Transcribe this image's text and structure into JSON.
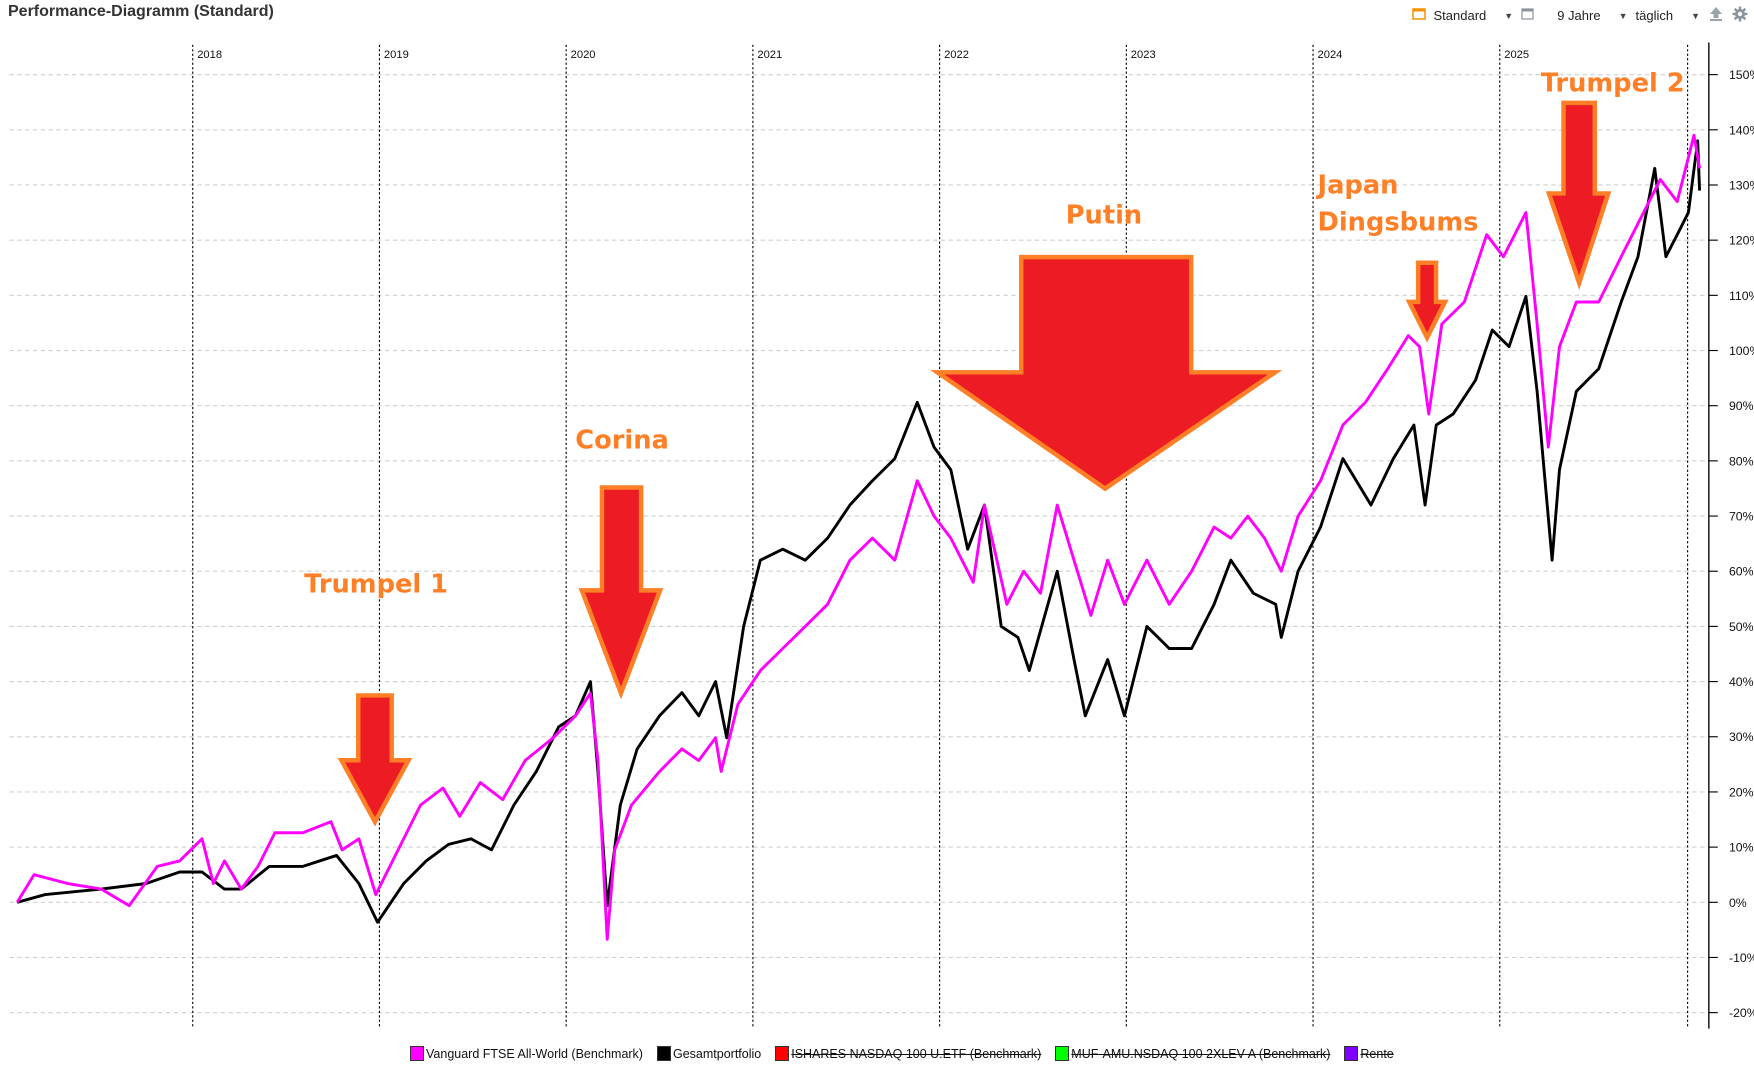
{
  "header": {
    "title": "Performance-Diagramm (Standard)"
  },
  "toolbar": {
    "view_label": "Standard",
    "period_label": "9 Jahre",
    "interval_label": "täglich",
    "icons": [
      "layout-icon",
      "window-icon",
      "export-icon",
      "gear-icon"
    ],
    "accent": "#f39200"
  },
  "chart_data": {
    "type": "line",
    "title": "Performance-Diagramm (Standard)",
    "xlabel": "",
    "ylabel": "",
    "xlim": [
      2017.06,
      2026.1
    ],
    "ylim": [
      -20,
      150
    ],
    "x_ticks": [
      {
        "v": 2018,
        "label": "2018"
      },
      {
        "v": 2019,
        "label": "2019"
      },
      {
        "v": 2020,
        "label": "2020"
      },
      {
        "v": 2021,
        "label": "2021"
      },
      {
        "v": 2022,
        "label": "2022"
      },
      {
        "v": 2023,
        "label": "2023"
      },
      {
        "v": 2024,
        "label": "2024"
      },
      {
        "v": 2025,
        "label": "2025"
      }
    ],
    "y_ticks": [
      -20,
      -10,
      0,
      10,
      20,
      30,
      40,
      50,
      60,
      70,
      80,
      90,
      100,
      110,
      120,
      130,
      140,
      150
    ],
    "y_tick_suffix": "%",
    "grid": true,
    "legend_position": "bottom",
    "series": [
      {
        "name": "Vanguard FTSE All-World  (Benchmark)",
        "color": "#ff00ff",
        "hidden": false,
        "points": [
          [
            2017.06,
            0
          ],
          [
            2017.15,
            5
          ],
          [
            2017.33,
            3.4
          ],
          [
            2017.51,
            2.4
          ],
          [
            2017.66,
            -0.6
          ],
          [
            2017.81,
            6.5
          ],
          [
            2017.93,
            7.5
          ],
          [
            2018.05,
            11.5
          ],
          [
            2018.11,
            3.4
          ],
          [
            2018.17,
            7.5
          ],
          [
            2018.26,
            2.4
          ],
          [
            2018.35,
            6.5
          ],
          [
            2018.44,
            12.6
          ],
          [
            2018.59,
            12.6
          ],
          [
            2018.74,
            14.6
          ],
          [
            2018.8,
            9.5
          ],
          [
            2018.89,
            11.5
          ],
          [
            2018.98,
            1.4
          ],
          [
            2019.1,
            9.5
          ],
          [
            2019.22,
            17.6
          ],
          [
            2019.34,
            20.7
          ],
          [
            2019.43,
            15.6
          ],
          [
            2019.54,
            21.7
          ],
          [
            2019.66,
            18.6
          ],
          [
            2019.78,
            25.7
          ],
          [
            2019.93,
            29.8
          ],
          [
            2020.05,
            33.8
          ],
          [
            2020.13,
            37.9
          ],
          [
            2020.17,
            25.7
          ],
          [
            2020.22,
            -6.7
          ],
          [
            2020.26,
            9.5
          ],
          [
            2020.35,
            17.6
          ],
          [
            2020.5,
            23.7
          ],
          [
            2020.62,
            27.8
          ],
          [
            2020.71,
            25.7
          ],
          [
            2020.8,
            29.8
          ],
          [
            2020.83,
            23.7
          ],
          [
            2020.92,
            35.9
          ],
          [
            2021.04,
            42
          ],
          [
            2021.16,
            46
          ],
          [
            2021.28,
            50
          ],
          [
            2021.4,
            54
          ],
          [
            2021.52,
            62
          ],
          [
            2021.64,
            66
          ],
          [
            2021.76,
            62
          ],
          [
            2021.88,
            76.4
          ],
          [
            2021.97,
            70
          ],
          [
            2022.06,
            66
          ],
          [
            2022.18,
            58
          ],
          [
            2022.24,
            72
          ],
          [
            2022.36,
            54
          ],
          [
            2022.45,
            60
          ],
          [
            2022.54,
            56
          ],
          [
            2022.63,
            72
          ],
          [
            2022.72,
            62
          ],
          [
            2022.81,
            52
          ],
          [
            2022.9,
            62
          ],
          [
            2022.99,
            54
          ],
          [
            2023.11,
            62
          ],
          [
            2023.23,
            54
          ],
          [
            2023.35,
            60
          ],
          [
            2023.47,
            68
          ],
          [
            2023.56,
            66
          ],
          [
            2023.65,
            70
          ],
          [
            2023.74,
            66
          ],
          [
            2023.83,
            60
          ],
          [
            2023.92,
            70
          ],
          [
            2024.04,
            76.4
          ],
          [
            2024.16,
            86.5
          ],
          [
            2024.28,
            90.6
          ],
          [
            2024.4,
            96.7
          ],
          [
            2024.51,
            102.7
          ],
          [
            2024.57,
            100.7
          ],
          [
            2024.62,
            88.5
          ],
          [
            2024.69,
            104.8
          ],
          [
            2024.81,
            108.8
          ],
          [
            2024.93,
            121
          ],
          [
            2025.02,
            117
          ],
          [
            2025.14,
            125
          ],
          [
            2025.2,
            104.8
          ],
          [
            2025.26,
            82.5
          ],
          [
            2025.32,
            100.7
          ],
          [
            2025.41,
            108.8
          ],
          [
            2025.53,
            108.8
          ],
          [
            2025.65,
            117
          ],
          [
            2025.77,
            125
          ],
          [
            2025.86,
            131
          ],
          [
            2025.95,
            127
          ],
          [
            2026.04,
            139
          ],
          [
            2026.07,
            133
          ]
        ]
      },
      {
        "name": "Gesamtportfolio",
        "color": "#000000",
        "hidden": false,
        "points": [
          [
            2017.06,
            0
          ],
          [
            2017.21,
            1.4
          ],
          [
            2017.51,
            2.4
          ],
          [
            2017.75,
            3.4
          ],
          [
            2017.93,
            5.5
          ],
          [
            2018.05,
            5.5
          ],
          [
            2018.17,
            2.4
          ],
          [
            2018.26,
            2.4
          ],
          [
            2018.41,
            6.5
          ],
          [
            2018.59,
            6.5
          ],
          [
            2018.77,
            8.5
          ],
          [
            2018.89,
            3.4
          ],
          [
            2018.99,
            -3.6
          ],
          [
            2019.13,
            3.4
          ],
          [
            2019.25,
            7.5
          ],
          [
            2019.37,
            10.5
          ],
          [
            2019.49,
            11.5
          ],
          [
            2019.6,
            9.5
          ],
          [
            2019.72,
            17.6
          ],
          [
            2019.84,
            23.7
          ],
          [
            2019.96,
            31.8
          ],
          [
            2020.05,
            33.8
          ],
          [
            2020.13,
            40
          ],
          [
            2020.17,
            23.7
          ],
          [
            2020.22,
            -0.6
          ],
          [
            2020.29,
            17.6
          ],
          [
            2020.38,
            27.8
          ],
          [
            2020.5,
            33.8
          ],
          [
            2020.62,
            38
          ],
          [
            2020.71,
            33.8
          ],
          [
            2020.8,
            40
          ],
          [
            2020.86,
            29.8
          ],
          [
            2020.95,
            50
          ],
          [
            2021.04,
            62
          ],
          [
            2021.16,
            64
          ],
          [
            2021.28,
            62
          ],
          [
            2021.4,
            66
          ],
          [
            2021.52,
            72
          ],
          [
            2021.64,
            76.4
          ],
          [
            2021.76,
            80.4
          ],
          [
            2021.88,
            90.6
          ],
          [
            2021.97,
            82.5
          ],
          [
            2022.06,
            78.4
          ],
          [
            2022.15,
            64
          ],
          [
            2022.24,
            72
          ],
          [
            2022.33,
            50
          ],
          [
            2022.42,
            48
          ],
          [
            2022.48,
            42
          ],
          [
            2022.63,
            60
          ],
          [
            2022.72,
            44
          ],
          [
            2022.78,
            33.8
          ],
          [
            2022.9,
            44
          ],
          [
            2022.99,
            33.8
          ],
          [
            2023.11,
            50
          ],
          [
            2023.23,
            46
          ],
          [
            2023.35,
            46
          ],
          [
            2023.47,
            54
          ],
          [
            2023.56,
            62
          ],
          [
            2023.68,
            56
          ],
          [
            2023.8,
            54
          ],
          [
            2023.83,
            48
          ],
          [
            2023.92,
            60
          ],
          [
            2024.04,
            68
          ],
          [
            2024.16,
            80.4
          ],
          [
            2024.31,
            72
          ],
          [
            2024.43,
            80.4
          ],
          [
            2024.54,
            86.5
          ],
          [
            2024.6,
            72
          ],
          [
            2024.66,
            86.5
          ],
          [
            2024.75,
            88.5
          ],
          [
            2024.87,
            94.6
          ],
          [
            2024.96,
            103.7
          ],
          [
            2025.05,
            100.7
          ],
          [
            2025.14,
            109.8
          ],
          [
            2025.2,
            92.6
          ],
          [
            2025.28,
            62
          ],
          [
            2025.32,
            78.4
          ],
          [
            2025.41,
            92.6
          ],
          [
            2025.53,
            96.7
          ],
          [
            2025.65,
            108.8
          ],
          [
            2025.74,
            117
          ],
          [
            2025.83,
            133
          ],
          [
            2025.89,
            117
          ],
          [
            2025.95,
            121
          ],
          [
            2026.01,
            125
          ],
          [
            2026.06,
            138
          ],
          [
            2026.07,
            129
          ]
        ]
      },
      {
        "name": "ISHARES NASDAQ 100 U.ETF (Benchmark)",
        "color": "#ff0000",
        "hidden": true,
        "points": []
      },
      {
        "name": "MUF-AMU.NSDAQ 100 2XLEV A (Benchmark)",
        "color": "#00ff00",
        "hidden": true,
        "points": []
      },
      {
        "name": "Rente",
        "color": "#8000ff",
        "hidden": true,
        "points": []
      }
    ],
    "annotations": [
      {
        "label": "Trumpel 1",
        "x": 2018.98,
        "y": 15
      },
      {
        "label": "Corina",
        "x": 2020.23,
        "y": 38
      },
      {
        "label": "Putin",
        "x": 2022.88,
        "y": 75
      },
      {
        "label": "Japan",
        "label2": "Dingsbums",
        "x": 2024.61,
        "y": 102
      },
      {
        "label": "Trumpel 2",
        "x": 2025.42,
        "y": 112
      }
    ],
    "annotation_colors": {
      "text": "#ff7f27",
      "fill": "#ed1c24",
      "stroke": "#ff7f27"
    }
  }
}
